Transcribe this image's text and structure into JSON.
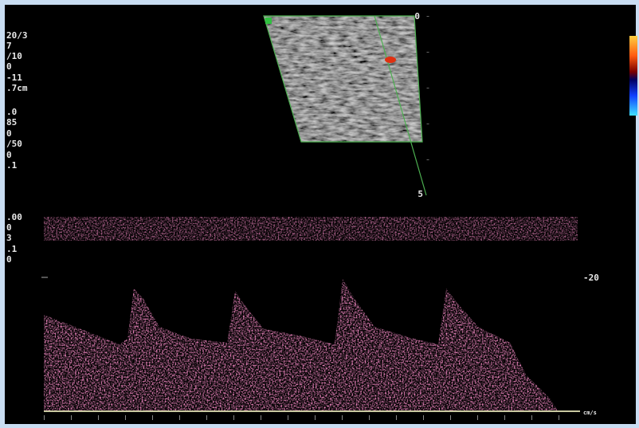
{
  "left_params": [
    "20/3",
    "7",
    "/10",
    "0",
    "-11",
    ".7cm",
    ".0",
    "85",
    "0",
    "/50",
    "0",
    ".1",
    ".00",
    "0",
    "3",
    ".1",
    "0"
  ],
  "depth_scale": {
    "top": "0",
    "bottom": "5"
  },
  "doppler_scale": {
    "mark": "-20",
    "unit": "cm/s"
  }
}
